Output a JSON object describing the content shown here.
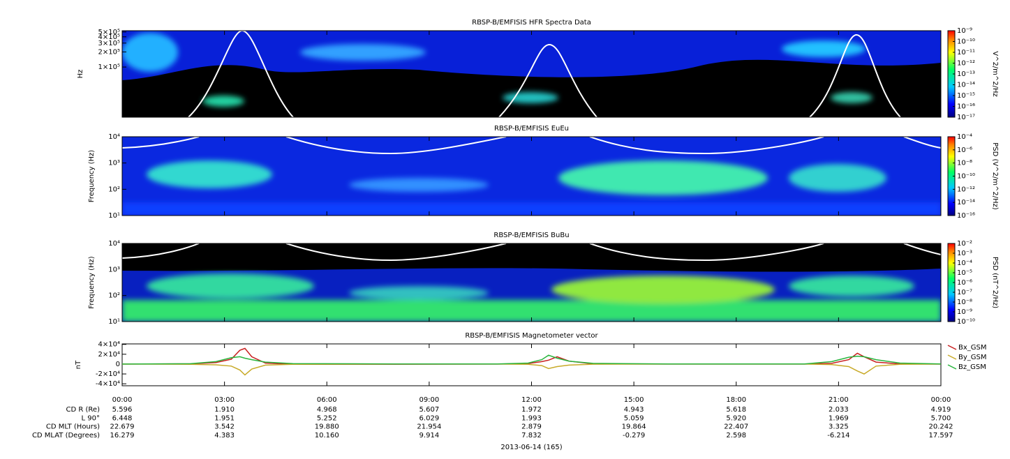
{
  "chart_data": [
    {
      "type": "spectrogram",
      "title": "RBSP-B/EMFISIS  HFR Spectra Data",
      "y_label": "Hz",
      "log_y": true,
      "ylim": [
        10000,
        530000
      ],
      "yticks": [
        {
          "value": 100000,
          "label": "1×10⁵"
        },
        {
          "value": 200000,
          "label": "2×10⁵"
        },
        {
          "value": 300000,
          "label": "3×10⁵"
        },
        {
          "value": 400000,
          "label": "4×10⁵"
        },
        {
          "value": 500000,
          "label": "5×10⁵"
        }
      ],
      "colorbar_label": "V^2/m^2/Hz",
      "clim": [
        1e-17,
        1e-09
      ],
      "cticks": [
        {
          "value": 1e-09,
          "label": "10⁻⁹"
        },
        {
          "value": 1e-10,
          "label": "10⁻¹⁰"
        },
        {
          "value": 1e-11,
          "label": "10⁻¹¹"
        },
        {
          "value": 1e-12,
          "label": "10⁻¹²"
        },
        {
          "value": 1e-13,
          "label": "10⁻¹³"
        },
        {
          "value": 1e-14,
          "label": "10⁻¹⁴"
        },
        {
          "value": 1e-15,
          "label": "10⁻¹⁵"
        },
        {
          "value": 1e-16,
          "label": "10⁻¹⁶"
        },
        {
          "value": 1e-17,
          "label": "10⁻¹⁷"
        }
      ]
    },
    {
      "type": "spectrogram",
      "title": "RBSP-B/EMFISIS  EuEu",
      "y_label": "Frequency (Hz)",
      "log_y": true,
      "ylim": [
        10,
        10000
      ],
      "yticks": [
        {
          "value": 10,
          "label": "10¹"
        },
        {
          "value": 100,
          "label": "10²"
        },
        {
          "value": 1000,
          "label": "10³"
        },
        {
          "value": 10000,
          "label": "10⁴"
        }
      ],
      "colorbar_label": "PSD (V^2/m^2/Hz)",
      "clim": [
        1e-16,
        0.0001
      ],
      "cticks": [
        {
          "value": 0.0001,
          "label": "10⁻⁴"
        },
        {
          "value": 1e-06,
          "label": "10⁻⁶"
        },
        {
          "value": 1e-08,
          "label": "10⁻⁸"
        },
        {
          "value": 1e-10,
          "label": "10⁻¹⁰"
        },
        {
          "value": 1e-12,
          "label": "10⁻¹²"
        },
        {
          "value": 1e-14,
          "label": "10⁻¹⁴"
        },
        {
          "value": 1e-16,
          "label": "10⁻¹⁶"
        }
      ]
    },
    {
      "type": "spectrogram",
      "title": "RBSP-B/EMFISIS  BuBu",
      "y_label": "Frequency (Hz)",
      "log_y": true,
      "ylim": [
        10,
        10000
      ],
      "yticks": [
        {
          "value": 10,
          "label": "10¹"
        },
        {
          "value": 100,
          "label": "10²"
        },
        {
          "value": 1000,
          "label": "10³"
        },
        {
          "value": 10000,
          "label": "10⁴"
        }
      ],
      "colorbar_label": "PSD (nT^2/Hz)",
      "clim": [
        1e-10,
        0.01
      ],
      "cticks": [
        {
          "value": 0.01,
          "label": "10⁻²"
        },
        {
          "value": 0.001,
          "label": "10⁻³"
        },
        {
          "value": 0.0001,
          "label": "10⁻⁴"
        },
        {
          "value": 1e-05,
          "label": "10⁻⁵"
        },
        {
          "value": 1e-06,
          "label": "10⁻⁶"
        },
        {
          "value": 1e-07,
          "label": "10⁻⁷"
        },
        {
          "value": 1e-08,
          "label": "10⁻⁸"
        },
        {
          "value": 1e-09,
          "label": "10⁻⁹"
        },
        {
          "value": 1e-10,
          "label": "10⁻¹⁰"
        }
      ]
    },
    {
      "type": "line",
      "title": "RBSP-B/EMFISIS  Magnetometer vector",
      "y_label": "nT",
      "log_y": false,
      "ylim": [
        -44000,
        41000
      ],
      "yticks": [
        {
          "value": 40000,
          "label": "4×10⁴"
        },
        {
          "value": 20000,
          "label": "2×10⁴"
        },
        0,
        {
          "value": -20000,
          "label": "-2×10⁴"
        },
        {
          "value": -40000,
          "label": "-4×10⁴"
        }
      ],
      "x": [
        0,
        2,
        2.75,
        3.2,
        3.45,
        3.6,
        3.8,
        4.2,
        5,
        8,
        11,
        11.9,
        12.3,
        12.5,
        12.75,
        13.1,
        13.8,
        16,
        20,
        20.8,
        21.3,
        21.55,
        21.75,
        22.1,
        22.8,
        24
      ],
      "series": [
        {
          "name": "Bx_GSM",
          "color": "#c81e1e",
          "values": [
            0,
            500,
            3000,
            10000,
            28000,
            32000,
            15000,
            2000,
            -500,
            -200,
            0,
            1000,
            5000,
            8000,
            15000,
            6000,
            500,
            0,
            0,
            1500,
            9000,
            22000,
            15000,
            4000,
            300,
            0
          ]
        },
        {
          "name": "By_GSM",
          "color": "#c8aa28",
          "values": [
            0,
            -300,
            -1500,
            -4000,
            -12000,
            -22000,
            -10000,
            -2000,
            -300,
            0,
            0,
            -500,
            -3000,
            -9000,
            -5000,
            -2000,
            -200,
            0,
            0,
            -1000,
            -5000,
            -14000,
            -20000,
            -4000,
            -300,
            0
          ]
        },
        {
          "name": "Bz_GSM",
          "color": "#28b43c",
          "values": [
            0,
            800,
            5000,
            13000,
            15000,
            12000,
            9000,
            4000,
            1000,
            300,
            300,
            2000,
            9000,
            18000,
            12000,
            6000,
            1500,
            300,
            300,
            5000,
            14000,
            16000,
            15000,
            9000,
            2000,
            300
          ]
        }
      ],
      "xlim": [
        0,
        24
      ],
      "xticks": [
        {
          "value": 0,
          "label": "00:00"
        },
        {
          "value": 3,
          "label": "03:00"
        },
        {
          "value": 6,
          "label": "06:00"
        },
        {
          "value": 9,
          "label": "09:00"
        },
        {
          "value": 12,
          "label": "12:00"
        },
        {
          "value": 15,
          "label": "15:00"
        },
        {
          "value": 18,
          "label": "18:00"
        },
        {
          "value": 21,
          "label": "21:00"
        },
        {
          "value": 24,
          "label": "00:00"
        }
      ],
      "ephemeris": [
        {
          "label": "CD R (Re)",
          "values": [
            "5.596",
            "1.910",
            "4.968",
            "5.607",
            "1.972",
            "4.943",
            "5.618",
            "2.033",
            "4.919"
          ]
        },
        {
          "label": "L 90°",
          "values": [
            "6.448",
            "1.951",
            "5.252",
            "6.029",
            "1.993",
            "5.059",
            "5.920",
            "1.969",
            "5.700"
          ]
        },
        {
          "label": "CD MLT (Hours)",
          "values": [
            "22.679",
            "3.542",
            "19.880",
            "21.954",
            "2.879",
            "19.864",
            "22.407",
            "3.325",
            "20.242"
          ]
        },
        {
          "label": "CD MLAT (Degrees)",
          "values": [
            "16.279",
            "4.383",
            "10.160",
            "9.914",
            "7.832",
            "-0.279",
            "2.598",
            "-6.214",
            "17.597"
          ]
        }
      ],
      "date": "2013-06-14 (165)"
    }
  ]
}
